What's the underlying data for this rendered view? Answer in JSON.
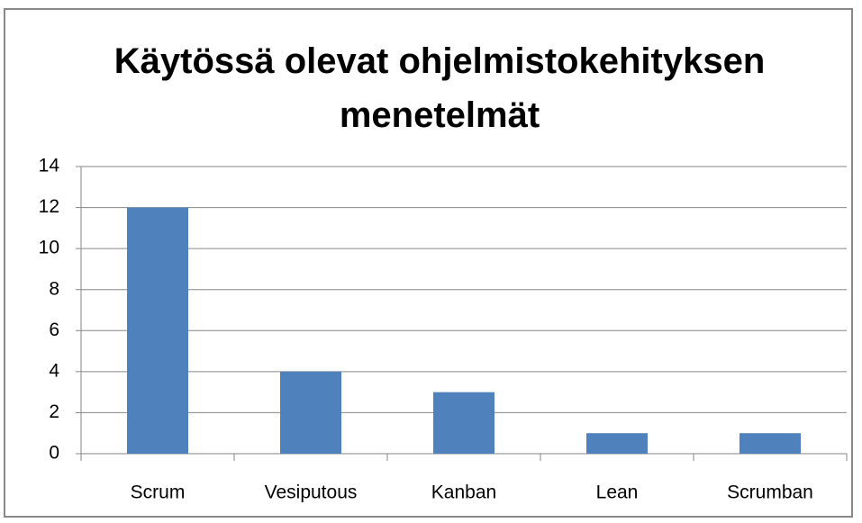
{
  "chart_data": {
    "type": "bar",
    "title": "Käytössä olevat ohjelmistokehityksen menetelmät",
    "categories": [
      "Scrum",
      "Vesiputous",
      "Kanban",
      "Lean",
      "Scrumban"
    ],
    "values": [
      12,
      4,
      3,
      1,
      1
    ],
    "color": "#4f81bd",
    "ylim": [
      0,
      14
    ],
    "yticks": [
      0,
      2,
      4,
      6,
      8,
      10,
      12,
      14
    ],
    "grid": true
  }
}
